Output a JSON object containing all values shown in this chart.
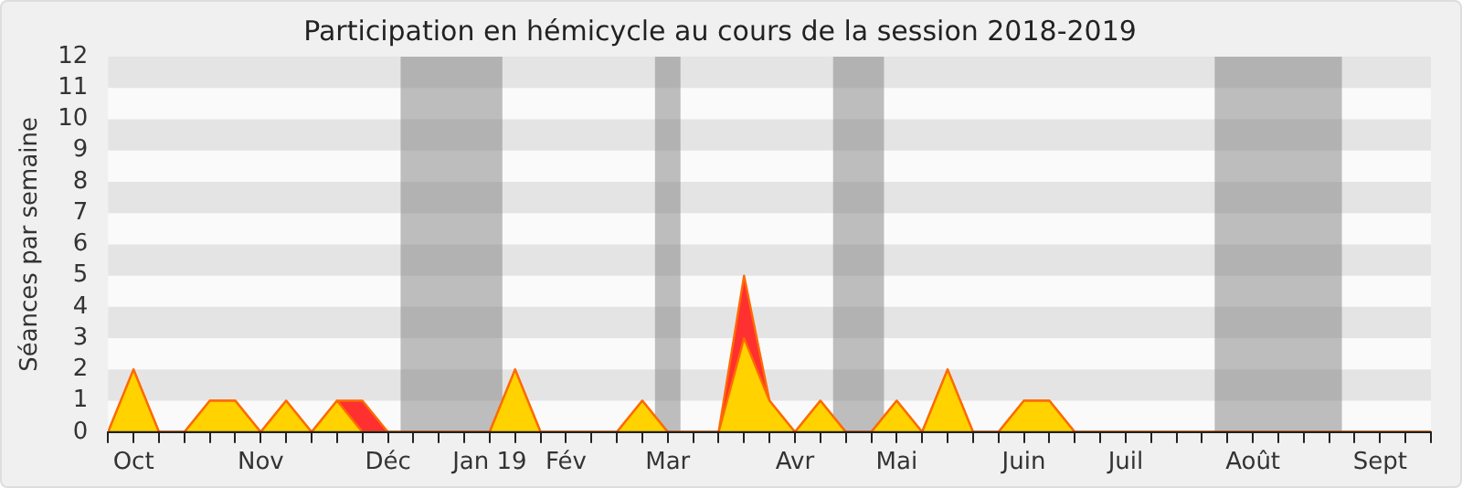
{
  "chart_data": {
    "type": "area",
    "title": "Participation en hémicycle au cours de la session 2018-2019",
    "ylabel": "Séances par semaine",
    "x": [
      "2018-10-01",
      "2018-10-08",
      "2018-10-15",
      "2018-10-22",
      "2018-10-29",
      "2018-11-05",
      "2018-11-12",
      "2018-11-19",
      "2018-11-26",
      "2018-12-03",
      "2018-12-10",
      "2018-12-17",
      "2018-12-24",
      "2018-12-31",
      "2019-01-07",
      "2019-01-14",
      "2019-01-21",
      "2019-01-28",
      "2019-02-04",
      "2019-02-11",
      "2019-02-18",
      "2019-02-25",
      "2019-03-04",
      "2019-03-11",
      "2019-03-18",
      "2019-03-25",
      "2019-04-01",
      "2019-04-08",
      "2019-04-15",
      "2019-04-22",
      "2019-04-29",
      "2019-05-06",
      "2019-05-13",
      "2019-05-20",
      "2019-05-27",
      "2019-06-03",
      "2019-06-10",
      "2019-06-17",
      "2019-06-24",
      "2019-07-01",
      "2019-07-08",
      "2019-07-15",
      "2019-07-22",
      "2019-07-29",
      "2019-08-05",
      "2019-08-12",
      "2019-08-19",
      "2019-08-26",
      "2019-09-02",
      "2019-09-09",
      "2019-09-16",
      "2019-09-23",
      "2019-09-30"
    ],
    "series": [
      {
        "color": "#ff3030",
        "values": [
          0,
          2,
          0,
          0,
          1,
          1,
          0,
          1,
          0,
          1,
          1,
          0,
          0,
          0,
          0,
          0,
          2,
          0,
          0,
          0,
          0,
          1,
          0,
          0,
          0,
          5,
          1,
          0,
          1,
          0,
          0,
          1,
          0,
          2,
          0,
          0,
          1,
          1,
          0,
          0,
          0,
          0,
          0,
          0,
          0,
          0,
          0,
          0,
          0,
          0,
          0,
          0,
          0
        ]
      },
      {
        "color": "#ffd200",
        "values": [
          0,
          2,
          0,
          0,
          1,
          1,
          0,
          1,
          0,
          1,
          0,
          0,
          0,
          0,
          0,
          0,
          2,
          0,
          0,
          0,
          0,
          1,
          0,
          0,
          0,
          3,
          1,
          0,
          1,
          0,
          0,
          1,
          0,
          2,
          0,
          0,
          1,
          1,
          0,
          0,
          0,
          0,
          0,
          0,
          0,
          0,
          0,
          0,
          0,
          0,
          0,
          0,
          0
        ]
      }
    ],
    "xlim": [
      "2018-10-01",
      "2019-09-30"
    ],
    "xticks": [
      {
        "value": "2018-10-01",
        "label": null
      },
      {
        "value": "2018-10-08",
        "label": "Oct"
      },
      {
        "value": "2018-10-15",
        "label": null
      },
      {
        "value": "2018-10-22",
        "label": null
      },
      {
        "value": "2018-10-29",
        "label": null
      },
      {
        "value": "2018-11-05",
        "label": null
      },
      {
        "value": "2018-11-12",
        "label": "Nov"
      },
      {
        "value": "2018-11-19",
        "label": null
      },
      {
        "value": "2018-11-26",
        "label": null
      },
      {
        "value": "2018-12-03",
        "label": null
      },
      {
        "value": "2018-12-10",
        "label": null
      },
      {
        "value": "2018-12-17",
        "label": "Déc"
      },
      {
        "value": "2018-12-24",
        "label": null
      },
      {
        "value": "2018-12-31",
        "label": null
      },
      {
        "value": "2019-01-07",
        "label": null
      },
      {
        "value": "2019-01-14",
        "label": "Jan 19"
      },
      {
        "value": "2019-01-21",
        "label": null
      },
      {
        "value": "2019-01-28",
        "label": null
      },
      {
        "value": "2019-02-04",
        "label": "Fév"
      },
      {
        "value": "2019-02-11",
        "label": null
      },
      {
        "value": "2019-02-18",
        "label": null
      },
      {
        "value": "2019-02-25",
        "label": null
      },
      {
        "value": "2019-03-04",
        "label": "Mar"
      },
      {
        "value": "2019-03-11",
        "label": null
      },
      {
        "value": "2019-03-18",
        "label": null
      },
      {
        "value": "2019-03-25",
        "label": null
      },
      {
        "value": "2019-04-01",
        "label": null
      },
      {
        "value": "2019-04-08",
        "label": "Avr"
      },
      {
        "value": "2019-04-15",
        "label": null
      },
      {
        "value": "2019-04-22",
        "label": null
      },
      {
        "value": "2019-04-29",
        "label": null
      },
      {
        "value": "2019-05-06",
        "label": "Mai"
      },
      {
        "value": "2019-05-13",
        "label": null
      },
      {
        "value": "2019-05-20",
        "label": null
      },
      {
        "value": "2019-05-27",
        "label": null
      },
      {
        "value": "2019-06-03",
        "label": null
      },
      {
        "value": "2019-06-10",
        "label": "Juin"
      },
      {
        "value": "2019-06-17",
        "label": null
      },
      {
        "value": "2019-06-24",
        "label": null
      },
      {
        "value": "2019-07-01",
        "label": null
      },
      {
        "value": "2019-07-08",
        "label": "Juil"
      },
      {
        "value": "2019-07-15",
        "label": null
      },
      {
        "value": "2019-07-22",
        "label": null
      },
      {
        "value": "2019-07-29",
        "label": null
      },
      {
        "value": "2019-08-05",
        "label": null
      },
      {
        "value": "2019-08-12",
        "label": "Août"
      },
      {
        "value": "2019-08-19",
        "label": null
      },
      {
        "value": "2019-08-26",
        "label": null
      },
      {
        "value": "2019-09-02",
        "label": null
      },
      {
        "value": "2019-09-09",
        "label": null
      },
      {
        "value": "2019-09-16",
        "label": "Sept"
      },
      {
        "value": "2019-09-23",
        "label": null
      },
      {
        "value": "2019-09-30",
        "label": null
      }
    ],
    "ylim": [
      0,
      12
    ],
    "yticks": [
      0,
      1,
      2,
      3,
      4,
      5,
      6,
      7,
      8,
      9,
      10,
      11,
      12
    ],
    "bands": [
      {
        "axis": "x",
        "from": "2018-12-20T12:00",
        "to": "2019-01-17T12:00",
        "color": "#808080"
      },
      {
        "axis": "x",
        "from": "2019-02-28T12:00",
        "to": "2019-03-07T12:00",
        "color": "#808080"
      },
      {
        "axis": "x",
        "from": "2019-04-18T12:00",
        "to": "2019-05-02T12:00",
        "color": "#808080"
      },
      {
        "axis": "x",
        "from": "2019-08-01T12:00",
        "to": "2019-09-05T12:00",
        "color": "#808080"
      }
    ]
  }
}
